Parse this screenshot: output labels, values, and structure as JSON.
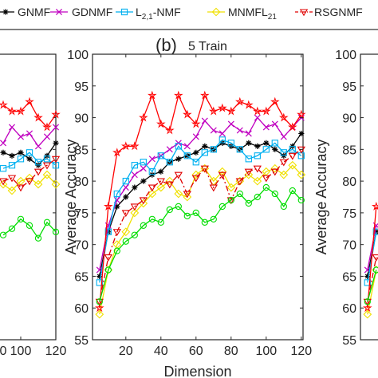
{
  "panel": {
    "label": "(b)",
    "subtitle": "5 Train"
  },
  "legend": {
    "items": [
      {
        "text": "GNMF",
        "sub": "",
        "after": ""
      },
      {
        "text": "GDNMF",
        "sub": "",
        "after": ""
      },
      {
        "text": "L",
        "sub": "2,1",
        "after": "-NMF"
      },
      {
        "text": "MNMFL",
        "sub": "21",
        "after": ""
      },
      {
        "text": "RSGNMF",
        "sub": "",
        "after": ""
      }
    ]
  },
  "chart_data": {
    "type": "line",
    "title": "(b) 5 Train",
    "xlabel": "Dimension",
    "ylabel": "Average Accuracy",
    "xlim": [
      1,
      121
    ],
    "ylim": [
      55,
      100
    ],
    "xticks": [
      20,
      40,
      60,
      80,
      100,
      120
    ],
    "yticks": [
      55,
      60,
      65,
      70,
      75,
      80,
      85,
      90,
      95,
      100
    ],
    "grid": false,
    "legend_position": "top",
    "x": [
      5,
      10,
      15,
      20,
      25,
      30,
      35,
      40,
      45,
      50,
      55,
      60,
      65,
      70,
      75,
      80,
      85,
      90,
      95,
      100,
      105,
      110,
      115,
      120
    ],
    "series": [
      {
        "name": "GNMF",
        "color": "#000000",
        "marker": "asterisk",
        "line": "solid",
        "values": [
          65,
          72,
          76,
          77.5,
          79,
          80,
          81,
          81.5,
          83,
          83.5,
          84,
          84.5,
          85.5,
          85,
          86,
          85.5,
          85,
          86,
          85.5,
          86,
          85,
          84,
          85.5,
          87.5
        ]
      },
      {
        "name": "GDNMF",
        "color": "#c000c0",
        "marker": "x",
        "line": "solid",
        "values": [
          66,
          73,
          77,
          79,
          81,
          82,
          83.5,
          84,
          85,
          86,
          85.5,
          87,
          89.5,
          88,
          87.5,
          89,
          88,
          87.5,
          90,
          88.5,
          89,
          87,
          88.5,
          90
        ]
      },
      {
        "name": "L2,1-NMF",
        "color": "#00b0f0",
        "marker": "square",
        "line": "solid",
        "values": [
          64,
          72,
          78,
          80,
          82.5,
          83,
          81.5,
          84,
          83,
          85.5,
          84,
          83,
          84.5,
          85,
          86.5,
          86,
          85,
          83.5,
          84,
          85,
          86,
          84.5,
          85,
          84
        ]
      },
      {
        "name": "MNMFL21",
        "color": "#f0e000",
        "marker": "diamond",
        "line": "solid",
        "values": [
          59,
          66,
          70,
          72,
          75,
          76.5,
          78,
          79,
          80,
          78,
          77.5,
          81,
          82,
          80,
          81.5,
          79,
          80,
          81,
          80,
          81.5,
          82,
          81,
          82.5,
          81
        ]
      },
      {
        "name": "RSGNMF",
        "color": "#e00000",
        "marker": "triangle-down",
        "line": "dashdot",
        "values": [
          61,
          68,
          72,
          75,
          76,
          77,
          79,
          80,
          79.5,
          81,
          78,
          80.5,
          82,
          79,
          81,
          77,
          80,
          81.5,
          82,
          80.5,
          81.5,
          83,
          84,
          85
        ]
      },
      {
        "name": "",
        "color": "#ff0000",
        "marker": "star",
        "line": "solid",
        "values": [
          60,
          76,
          84.5,
          85.5,
          85.5,
          90,
          93.5,
          89,
          88,
          93.5,
          90.5,
          89,
          93.5,
          91,
          91.5,
          91,
          92.5,
          92,
          91,
          91,
          92.5,
          90,
          88.5,
          90.5
        ]
      },
      {
        "name": "",
        "color": "#00dd00",
        "marker": "circle",
        "line": "solid",
        "values": [
          61,
          66,
          69,
          70.5,
          71.5,
          73,
          74,
          73.5,
          75.5,
          76,
          74.5,
          75,
          73.5,
          74,
          76,
          77,
          78,
          76.5,
          77.5,
          79,
          78,
          76,
          78.5,
          77
        ]
      }
    ],
    "side_panels": {
      "left": {
        "yticks": [
          75,
          80,
          85,
          90
        ],
        "xticks": [
          100,
          120
        ],
        "xtick_partial": "0"
      },
      "right": {
        "yticks": [
          55,
          60,
          65,
          70,
          75,
          80,
          85,
          90,
          95,
          100
        ]
      }
    }
  }
}
